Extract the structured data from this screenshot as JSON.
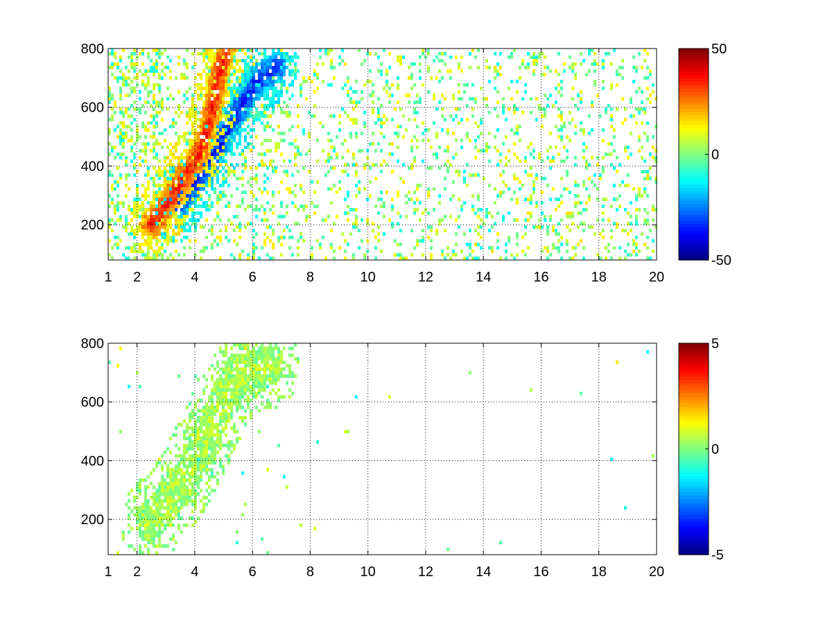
{
  "chart_data": [
    {
      "type": "heatmap",
      "title": "",
      "xlabel": "",
      "ylabel": "",
      "xlim": [
        1,
        20
      ],
      "ylim": [
        80,
        800
      ],
      "grid": true,
      "x_ticks": [
        1,
        2,
        4,
        6,
        8,
        10,
        12,
        14,
        16,
        18,
        20
      ],
      "x_tick_labels": [
        "1",
        "2",
        "4",
        "6",
        "8",
        "10",
        "12",
        "14",
        "16",
        "18",
        "20"
      ],
      "y_ticks": [
        200,
        400,
        600,
        800
      ],
      "y_tick_labels": [
        "200",
        "400",
        "600",
        "800"
      ],
      "colorbar": {
        "colormap": "jet",
        "clim": [
          -50,
          50
        ],
        "ticks": [
          -50,
          0,
          50
        ],
        "tick_labels": [
          "-50",
          "0",
          "50"
        ]
      },
      "features": [
        {
          "desc": "positive ridge",
          "value": 35,
          "path": [
            [
              2.4,
              190
            ],
            [
              3.0,
              260
            ],
            [
              3.6,
              360
            ],
            [
              4.1,
              430
            ],
            [
              4.5,
              560
            ],
            [
              4.8,
              700
            ],
            [
              5.0,
              790
            ]
          ]
        },
        {
          "desc": "negative ridge",
          "value": -35,
          "path": [
            [
              3.3,
              250
            ],
            [
              3.9,
              330
            ],
            [
              4.4,
              400
            ],
            [
              4.9,
              480
            ],
            [
              5.3,
              560
            ],
            [
              5.8,
              640
            ],
            [
              6.3,
              700
            ],
            [
              6.8,
              730
            ]
          ]
        }
      ],
      "background": "sparse near-zero values scattered across 1–20"
    },
    {
      "type": "heatmap",
      "title": "",
      "xlabel": "",
      "ylabel": "",
      "xlim": [
        1,
        20
      ],
      "ylim": [
        80,
        800
      ],
      "grid": true,
      "x_ticks": [
        1,
        2,
        4,
        6,
        8,
        10,
        12,
        14,
        16,
        18,
        20
      ],
      "x_tick_labels": [
        "1",
        "2",
        "4",
        "6",
        "8",
        "10",
        "12",
        "14",
        "16",
        "18",
        "20"
      ],
      "y_ticks": [
        200,
        400,
        600,
        800
      ],
      "y_tick_labels": [
        "200",
        "400",
        "600",
        "800"
      ],
      "colorbar": {
        "colormap": "jet",
        "clim": [
          -5,
          5
        ],
        "ticks": [
          -5,
          0,
          5
        ],
        "tick_labels": [
          "-5",
          "0",
          "5"
        ]
      },
      "features": [
        {
          "desc": "main ridge",
          "value": 0.5,
          "path": [
            [
              2.4,
              180
            ],
            [
              3.0,
              250
            ],
            [
              3.6,
              330
            ],
            [
              4.1,
              420
            ],
            [
              4.6,
              520
            ],
            [
              5.0,
              620
            ],
            [
              5.6,
              690
            ],
            [
              6.6,
              720
            ]
          ]
        }
      ],
      "background": "mostly empty beyond x = 7"
    }
  ]
}
